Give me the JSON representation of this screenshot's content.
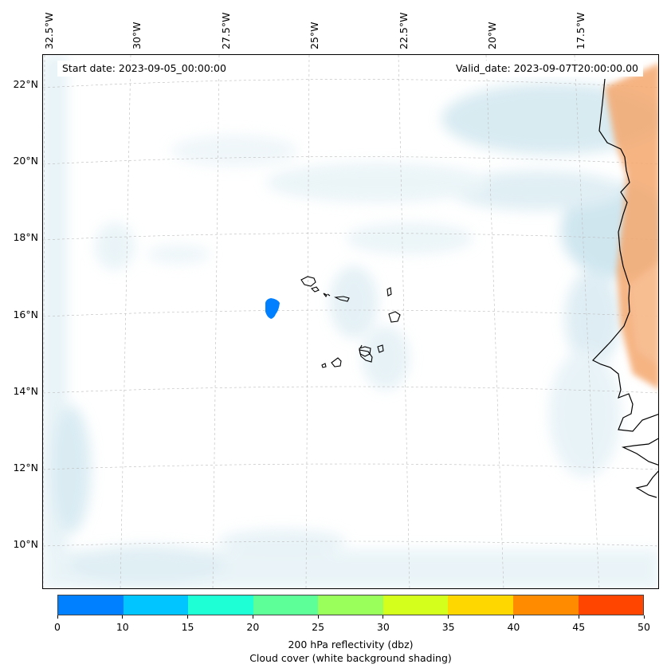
{
  "map": {
    "start_date": "Start date: 2023-09-05_00:00:00",
    "valid_date": "Valid_date: 2023-09-07T20:00:00.00",
    "lon_labels": [
      "32.5°W",
      "30°W",
      "27.5°W",
      "25°W",
      "22.5°W",
      "20°W",
      "17.5°W"
    ],
    "lat_labels": [
      "22°N",
      "20°N",
      "18°N",
      "16°N",
      "14°N",
      "12°N",
      "10°N"
    ],
    "features": {
      "reflectivity_blob": {
        "lon": -25.9,
        "lat": 16.2,
        "dbz_band": "0-10",
        "color": "#007fff"
      },
      "africa_warm_shading_color": "#f5a76c",
      "cloud_shading_color": "#cfe7f0",
      "coastline_color": "#000000"
    }
  },
  "colorbar": {
    "ticks": [
      "0",
      "10",
      "15",
      "20",
      "25",
      "30",
      "35",
      "40",
      "45",
      "50"
    ],
    "colors": [
      "#007fff",
      "#00c5ff",
      "#1fffd5",
      "#5dff99",
      "#9aff5b",
      "#d4ff1d",
      "#ffd700",
      "#ff8c00",
      "#ff4500"
    ],
    "label_line1": "200 hPa reflectivity (dbz)",
    "label_line2": "Cloud cover (white background shading)"
  }
}
